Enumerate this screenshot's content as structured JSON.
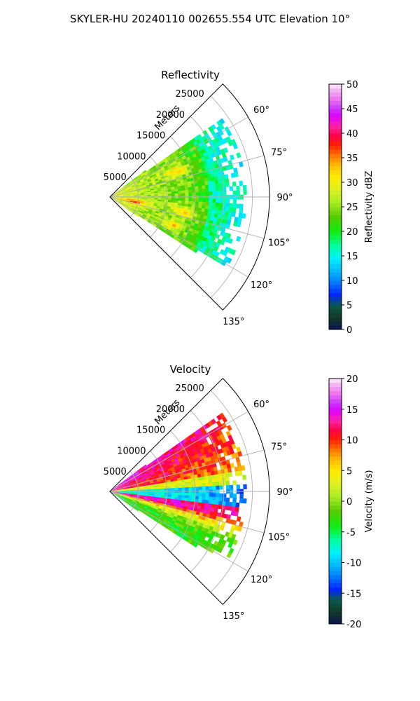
{
  "suptitle": "SKYLER-HU  20240110  002655.554 UTC Elevation 10°",
  "chart_data": [
    {
      "type": "heatmap",
      "projection": "polar-sector",
      "title": "Reflectivity",
      "radial_label": "Meters",
      "radial_ticks": [
        "5000",
        "10000",
        "15000",
        "20000",
        "25000"
      ],
      "radial_values": [
        5000,
        10000,
        15000,
        20000,
        25000
      ],
      "r_max": 28000,
      "data_r_max": 24000,
      "angle_range_deg": [
        45,
        135
      ],
      "angle_ticks": [
        "60°",
        "75°",
        "90°",
        "105°",
        "120°",
        "135°"
      ],
      "angle_values": [
        60,
        75,
        90,
        105,
        120,
        135
      ],
      "colorbar": {
        "label": "Reflectivity dBZ",
        "min": 0,
        "max": 50,
        "ticks": [
          "0",
          "5",
          "10",
          "15",
          "20",
          "25",
          "30",
          "35",
          "40",
          "45",
          "50"
        ],
        "tick_values": [
          0,
          5,
          10,
          15,
          20,
          25,
          30,
          35,
          40,
          45,
          50
        ]
      }
    },
    {
      "type": "heatmap",
      "projection": "polar-sector",
      "title": "Velocity",
      "radial_label": "Meters",
      "radial_ticks": [
        "5000",
        "10000",
        "15000",
        "20000",
        "25000"
      ],
      "radial_values": [
        5000,
        10000,
        15000,
        20000,
        25000
      ],
      "r_max": 28000,
      "data_r_max": 24000,
      "angle_range_deg": [
        45,
        135
      ],
      "angle_ticks": [
        "60°",
        "75°",
        "90°",
        "105°",
        "120°",
        "135°"
      ],
      "angle_values": [
        60,
        75,
        90,
        105,
        120,
        135
      ],
      "colorbar": {
        "label": "Velocity (m/s)",
        "min": -20,
        "max": 20,
        "ticks": [
          "-20",
          "-15",
          "-10",
          "-5",
          "0",
          "5",
          "10",
          "15",
          "20"
        ],
        "tick_values": [
          -20,
          -15,
          -10,
          -5,
          0,
          5,
          10,
          15,
          20
        ]
      }
    }
  ]
}
